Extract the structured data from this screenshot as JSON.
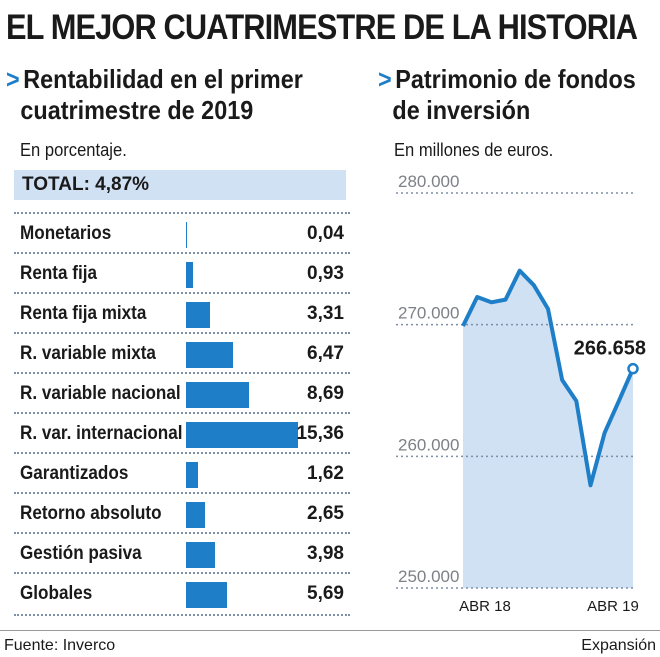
{
  "title": "EL MEJOR CUATRIMESTRE DE LA HISTORIA",
  "left": {
    "arrow": ">",
    "subtitle_line1": "Rentabilidad en el primer",
    "subtitle_line2": "cuatrimestre de 2019",
    "unit": "En porcentaje.",
    "total": "TOTAL: 4,87%"
  },
  "right": {
    "arrow": ">",
    "subtitle_line1": "Patrimonio de fondos",
    "subtitle_line2": "de inversión",
    "unit": "En millones de euros."
  },
  "footer": {
    "source": "Fuente: Inverco",
    "brand": "Expansión"
  },
  "colors": {
    "bar": "#1e7ec8",
    "area": "#cfe1f3",
    "accent": "#1e7ec8"
  },
  "chart_data": [
    {
      "type": "bar",
      "orientation": "horizontal",
      "categories": [
        "Monetarios",
        "Renta fija",
        "Renta fija mixta",
        "R. variable mixta",
        "R. variable nacional",
        "R. var. internacional",
        "Garantizados",
        "Retorno absoluto",
        "Gestión pasiva",
        "Globales"
      ],
      "values": [
        0.04,
        0.93,
        3.31,
        6.47,
        8.69,
        15.36,
        1.62,
        2.65,
        3.98,
        5.69
      ],
      "value_labels": [
        "0,04",
        "0,93",
        "3,31",
        "6,47",
        "8,69",
        "15,36",
        "1,62",
        "2,65",
        "3,98",
        "5,69"
      ],
      "xlim": [
        0,
        15.36
      ]
    },
    {
      "type": "area",
      "x_ticks": [
        "ABR 18",
        "ABR 19"
      ],
      "y_ticks": [
        "280.000",
        "270.000",
        "260.000",
        "250.000"
      ],
      "ylim": [
        250000,
        280000
      ],
      "grid": true,
      "x_index": [
        0,
        1,
        2,
        3,
        4,
        5,
        6,
        7,
        8,
        9,
        10,
        11,
        12
      ],
      "values": [
        269900,
        272100,
        271700,
        271900,
        274100,
        273000,
        271200,
        265800,
        264200,
        257800,
        261800,
        264200,
        266658
      ],
      "end_label": "266.658"
    }
  ]
}
